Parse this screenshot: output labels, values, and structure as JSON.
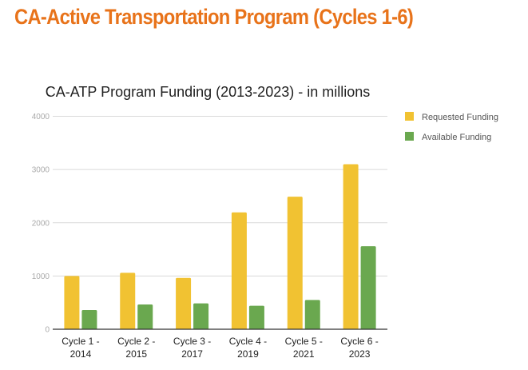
{
  "page": {
    "title": "CA-Active Transportation Program (Cycles 1-6)",
    "title_color": "#e8731a"
  },
  "chart_data": {
    "type": "bar",
    "title": "CA-ATP Program Funding (2013-2023) - in millions",
    "xlabel": "",
    "ylabel": "",
    "ylim": [
      0,
      4000
    ],
    "yticks": [
      0,
      1000,
      2000,
      3000,
      4000
    ],
    "grid": true,
    "legend_position": "right",
    "categories": [
      [
        "Cycle 1 -",
        "2014"
      ],
      [
        "Cycle 2 -",
        "2015"
      ],
      [
        "Cycle 3 -",
        "2017"
      ],
      [
        "Cycle 4 -",
        "2019"
      ],
      [
        "Cycle 5 -",
        "2021"
      ],
      [
        "Cycle 6 -",
        "2023"
      ]
    ],
    "series": [
      {
        "name": "Requested Funding",
        "color": "#f1c232",
        "values": [
          1000,
          1060,
          965,
          2195,
          2490,
          3100
        ]
      },
      {
        "name": "Available Funding",
        "color": "#6aa84f",
        "values": [
          360,
          465,
          485,
          440,
          550,
          1560
        ]
      }
    ]
  }
}
